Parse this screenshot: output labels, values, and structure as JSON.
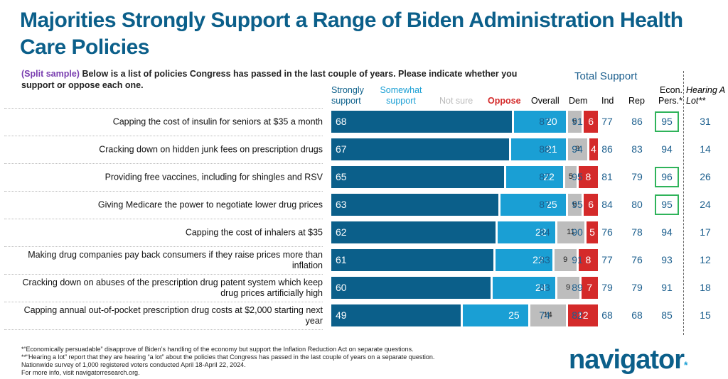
{
  "header": {
    "title": "Majorities Strongly Support a Range of Biden Administration Health Care Policies",
    "subtitle_tag": "(Split sample)",
    "subtitle": " Below is a list of policies Congress has passed in the last couple of years. Please indicate whether you support or oppose each one."
  },
  "colors": {
    "strong": "#0b5f8a",
    "somewhat": "#1a9fd4",
    "notsure": "#bdbdbd",
    "oppose": "#d42a2a",
    "highlight": "#2fb35a"
  },
  "columns": {
    "strong": "Strongly support",
    "somewhat": "Somewhat support",
    "notsure": "Not sure",
    "oppose": "Oppose",
    "total_support": "Total Support",
    "overall": "Overall",
    "dem": "Dem",
    "ind": "Ind",
    "rep": "Rep",
    "econ": "Econ. Pers.*",
    "hearing": "Hearing A Lot**"
  },
  "chart_data": {
    "type": "bar",
    "stacked": true,
    "orientation": "horizontal",
    "title": "Majorities Strongly Support a Range of Biden Administration Health Care Policies",
    "categories": [
      "Capping the cost of insulin for seniors at $35 a month",
      "Cracking down on hidden junk fees on prescription drugs",
      "Providing free vaccines, including for shingles and RSV",
      "Giving Medicare the power to negotiate lower drug prices",
      "Capping the cost of inhalers at $35",
      "Making drug companies pay back consumers if they raise prices more than inflation",
      "Cracking down on abuses of the prescription drug patent system which keep drug prices artificially high",
      "Capping annual out-of-pocket prescription drug costs at $2,000 starting next year"
    ],
    "series": [
      {
        "name": "Strongly support",
        "values": [
          68,
          67,
          65,
          63,
          62,
          61,
          60,
          49
        ]
      },
      {
        "name": "Somewhat support",
        "values": [
          20,
          21,
          22,
          25,
          22,
          22,
          24,
          25
        ]
      },
      {
        "name": "Not sure",
        "values": [
          6,
          8,
          5,
          6,
          11,
          9,
          9,
          14
        ]
      },
      {
        "name": "Oppose",
        "values": [
          6,
          4,
          8,
          6,
          5,
          8,
          7,
          12
        ]
      }
    ],
    "table": {
      "Overall": [
        87,
        88,
        87,
        87,
        84,
        83,
        83,
        74
      ],
      "Dem": [
        91,
        94,
        95,
        95,
        90,
        91,
        89,
        82
      ],
      "Ind": [
        77,
        86,
        81,
        84,
        76,
        77,
        79,
        68
      ],
      "Rep": [
        86,
        83,
        79,
        80,
        78,
        76,
        79,
        68
      ],
      "Econ. Pers.*": [
        95,
        94,
        96,
        95,
        94,
        93,
        91,
        85
      ],
      "Hearing A Lot**": [
        31,
        14,
        26,
        24,
        17,
        12,
        18,
        15
      ]
    },
    "highlighted_econ": [
      0,
      2,
      3
    ]
  },
  "footer": [
    "*“Economically persuadable” disapprove of Biden’s handling of the economy but support the Inflation Reduction Act on separate questions.",
    "**“Hearing a lot” report that they are hearing “a lot” about the policies that Congress has passed in the last couple of years on a separate question.",
    "Nationwide survey of 1,000 registered voters conducted April 18-April 22, 2024.",
    "For more info, visit navigatorresearch.org."
  ],
  "logo": "navigator"
}
